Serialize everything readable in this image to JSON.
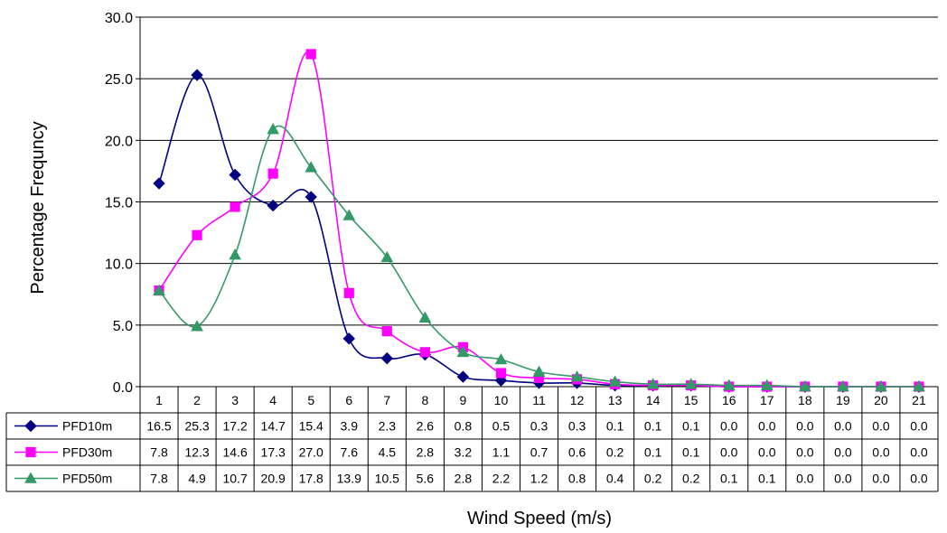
{
  "chart_data": {
    "type": "line",
    "xlabel": "Wind Speed (m/s)",
    "ylabel": "Percentage Frequncy",
    "ylim": [
      0,
      30
    ],
    "y_ticks": [
      "0.0",
      "5.0",
      "10.0",
      "15.0",
      "20.0",
      "25.0",
      "30.0"
    ],
    "grid": true,
    "legend": "data-table",
    "categories": [
      "1",
      "2",
      "3",
      "4",
      "5",
      "6",
      "7",
      "8",
      "9",
      "10",
      "11",
      "12",
      "13",
      "14",
      "15",
      "16",
      "17",
      "18",
      "19",
      "20",
      "21"
    ],
    "series": [
      {
        "name": "PFD10m",
        "color": "#000080",
        "marker": "diamond",
        "values": [
          16.5,
          25.3,
          17.2,
          14.7,
          15.4,
          3.9,
          2.3,
          2.6,
          0.8,
          0.5,
          0.3,
          0.3,
          0.1,
          0.1,
          0.1,
          0.0,
          0.0,
          0.0,
          0.0,
          0.0,
          0.0
        ],
        "labels": [
          "16.5",
          "25.3",
          "17.2",
          "14.7",
          "15.4",
          "3.9",
          "2.3",
          "2.6",
          "0.8",
          "0.5",
          "0.3",
          "0.3",
          "0.1",
          "0.1",
          "0.1",
          "0.0",
          "0.0",
          "0.0",
          "0.0",
          "0.0",
          "0.0"
        ]
      },
      {
        "name": "PFD30m",
        "color": "#FF00FF",
        "marker": "square",
        "values": [
          7.8,
          12.3,
          14.6,
          17.3,
          27.0,
          7.6,
          4.5,
          2.8,
          3.2,
          1.1,
          0.7,
          0.6,
          0.2,
          0.1,
          0.1,
          0.0,
          0.0,
          0.0,
          0.0,
          0.0,
          0.0
        ],
        "labels": [
          "7.8",
          "12.3",
          "14.6",
          "17.3",
          "27.0",
          "7.6",
          "4.5",
          "2.8",
          "3.2",
          "1.1",
          "0.7",
          "0.6",
          "0.2",
          "0.1",
          "0.1",
          "0.0",
          "0.0",
          "0.0",
          "0.0",
          "0.0",
          "0.0"
        ]
      },
      {
        "name": "PFD50m",
        "color": "#339966",
        "marker": "triangle",
        "values": [
          7.8,
          4.9,
          10.7,
          20.9,
          17.8,
          13.9,
          10.5,
          5.6,
          2.8,
          2.2,
          1.2,
          0.8,
          0.4,
          0.2,
          0.2,
          0.1,
          0.1,
          0.0,
          0.0,
          0.0,
          0.0
        ],
        "labels": [
          "7.8",
          "4.9",
          "10.7",
          "20.9",
          "17.8",
          "13.9",
          "10.5",
          "5.6",
          "2.8",
          "2.2",
          "1.2",
          "0.8",
          "0.4",
          "0.2",
          "0.2",
          "0.1",
          "0.1",
          "0.0",
          "0.0",
          "0.0",
          "0.0"
        ]
      }
    ]
  }
}
